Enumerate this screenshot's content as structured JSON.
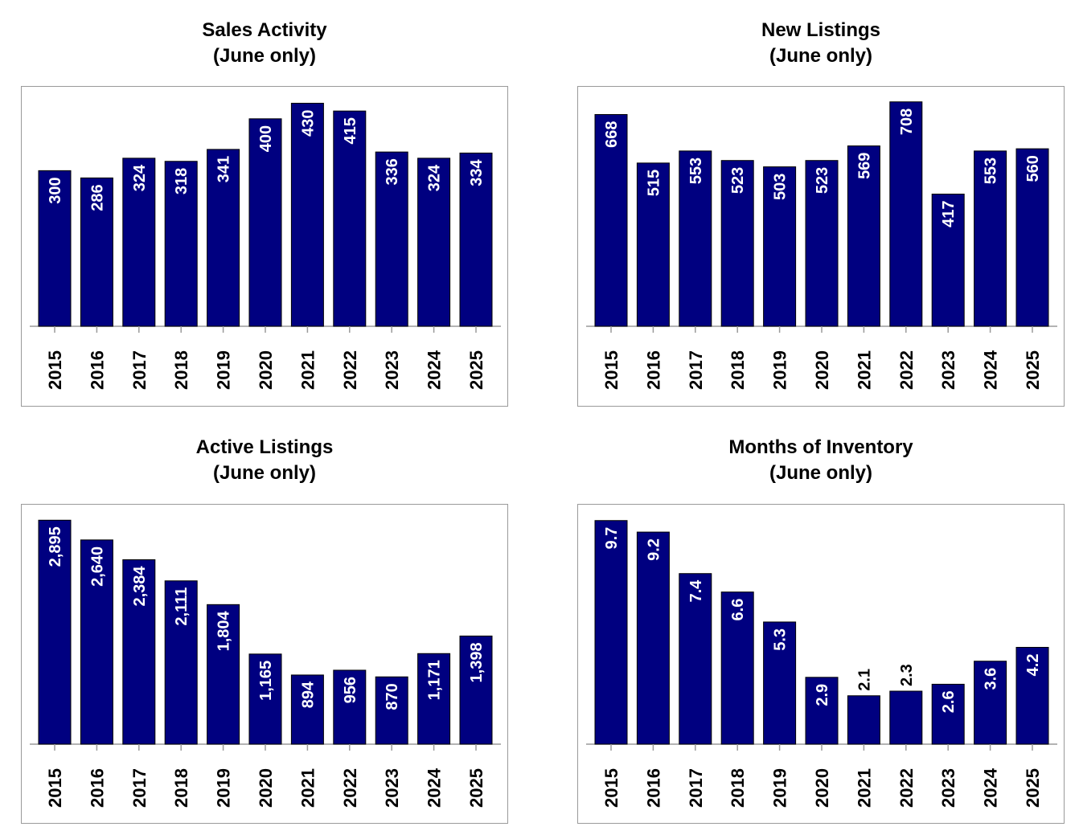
{
  "chart_data": [
    {
      "type": "bar",
      "title": "Sales Activity",
      "subtitle": "(June only)",
      "categories": [
        "2015",
        "2016",
        "2017",
        "2018",
        "2019",
        "2020",
        "2021",
        "2022",
        "2023",
        "2024",
        "2025"
      ],
      "values": [
        300,
        286,
        324,
        318,
        341,
        400,
        430,
        415,
        336,
        324,
        334
      ],
      "labels": [
        "300",
        "286",
        "324",
        "318",
        "341",
        "400",
        "430",
        "415",
        "336",
        "324",
        "334"
      ],
      "ylim": [
        0,
        440
      ],
      "bar_color": "#000080",
      "grid": false
    },
    {
      "type": "bar",
      "title": "New Listings",
      "subtitle": "(June only)",
      "categories": [
        "2015",
        "2016",
        "2017",
        "2018",
        "2019",
        "2020",
        "2021",
        "2022",
        "2023",
        "2024",
        "2025"
      ],
      "values": [
        668,
        515,
        553,
        523,
        503,
        523,
        569,
        708,
        417,
        553,
        560
      ],
      "labels": [
        "668",
        "515",
        "553",
        "523",
        "503",
        "523",
        "569",
        "708",
        "417",
        "553",
        "560"
      ],
      "ylim": [
        0,
        720
      ],
      "bar_color": "#000080",
      "grid": false
    },
    {
      "type": "bar",
      "title": "Active Listings",
      "subtitle": "(June only)",
      "categories": [
        "2015",
        "2016",
        "2017",
        "2018",
        "2019",
        "2020",
        "2021",
        "2022",
        "2023",
        "2024",
        "2025"
      ],
      "values": [
        2895,
        2640,
        2384,
        2111,
        1804,
        1165,
        894,
        956,
        870,
        1171,
        1398
      ],
      "labels": [
        "2,895",
        "2,640",
        "2,384",
        "2,111",
        "1,804",
        "1,165",
        "894",
        "956",
        "870",
        "1,171",
        "1,398"
      ],
      "ylim": [
        0,
        2950
      ],
      "bar_color": "#000080",
      "grid": false
    },
    {
      "type": "bar",
      "title": "Months of Inventory",
      "subtitle": "(June only)",
      "categories": [
        "2015",
        "2016",
        "2017",
        "2018",
        "2019",
        "2020",
        "2021",
        "2022",
        "2023",
        "2024",
        "2025"
      ],
      "values": [
        9.7,
        9.2,
        7.4,
        6.6,
        5.3,
        2.9,
        2.1,
        2.3,
        2.6,
        3.6,
        4.2
      ],
      "labels": [
        "9.7",
        "9.2",
        "7.4",
        "6.6",
        "5.3",
        "2.9",
        "2.1",
        "2.3",
        "2.6",
        "3.6",
        "4.2"
      ],
      "label_outside": [
        false,
        false,
        false,
        false,
        false,
        false,
        true,
        true,
        false,
        false,
        false
      ],
      "ylim": [
        0,
        9.9
      ],
      "bar_color": "#000080",
      "grid": false
    }
  ]
}
